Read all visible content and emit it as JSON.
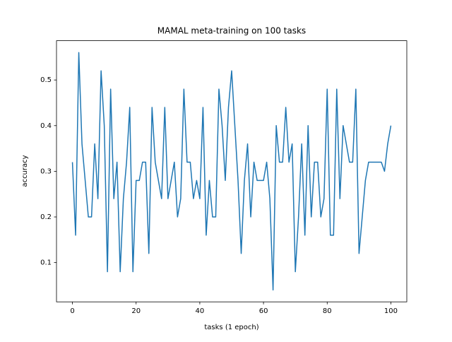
{
  "chart_data": {
    "type": "line",
    "title": "MAMAL meta-training on 100 tasks",
    "x_label": "tasks (1 epoch)",
    "y_label": "accuracy",
    "x": [
      0,
      1,
      2,
      3,
      4,
      5,
      6,
      7,
      8,
      9,
      10,
      11,
      12,
      13,
      14,
      15,
      16,
      17,
      18,
      19,
      20,
      21,
      22,
      23,
      24,
      25,
      26,
      27,
      28,
      29,
      30,
      31,
      32,
      33,
      34,
      35,
      36,
      37,
      38,
      39,
      40,
      41,
      42,
      43,
      44,
      45,
      46,
      47,
      48,
      49,
      50,
      51,
      52,
      53,
      54,
      55,
      56,
      57,
      58,
      59,
      60,
      61,
      62,
      63,
      64,
      65,
      66,
      67,
      68,
      69,
      70,
      71,
      72,
      73,
      74,
      75,
      76,
      77,
      78,
      79,
      80,
      81,
      82,
      83,
      84,
      85,
      86,
      87,
      88,
      89,
      90,
      91,
      92,
      93,
      94,
      95,
      96,
      97,
      98,
      99,
      100
    ],
    "series": [
      {
        "name": "accuracy",
        "color": "#1f77b4",
        "values": [
          0.32,
          0.16,
          0.56,
          0.36,
          0.28,
          0.2,
          0.2,
          0.36,
          0.24,
          0.52,
          0.4,
          0.08,
          0.48,
          0.24,
          0.32,
          0.08,
          0.24,
          0.32,
          0.44,
          0.08,
          0.28,
          0.28,
          0.32,
          0.32,
          0.12,
          0.44,
          0.32,
          0.28,
          0.24,
          0.44,
          0.24,
          0.28,
          0.32,
          0.2,
          0.24,
          0.48,
          0.32,
          0.32,
          0.24,
          0.28,
          0.24,
          0.44,
          0.16,
          0.28,
          0.2,
          0.2,
          0.48,
          0.4,
          0.28,
          0.44,
          0.52,
          0.4,
          0.28,
          0.12,
          0.28,
          0.36,
          0.2,
          0.32,
          0.28,
          0.28,
          0.28,
          0.32,
          0.24,
          0.04,
          0.4,
          0.32,
          0.32,
          0.44,
          0.32,
          0.36,
          0.08,
          0.2,
          0.36,
          0.16,
          0.4,
          0.2,
          0.32,
          0.32,
          0.2,
          0.24,
          0.48,
          0.16,
          0.16,
          0.48,
          0.24,
          0.4,
          0.36,
          0.32,
          0.32,
          0.48,
          0.12,
          0.2,
          0.28,
          0.32,
          0.32,
          0.32,
          0.32,
          0.32,
          0.3,
          0.36,
          0.4
        ]
      }
    ],
    "xlim": [
      -5,
      105
    ],
    "ylim": [
      0.014,
      0.586
    ],
    "xticks": [
      0,
      20,
      40,
      60,
      80,
      100
    ],
    "yticks": [
      0.1,
      0.2,
      0.3,
      0.4,
      0.5
    ]
  }
}
